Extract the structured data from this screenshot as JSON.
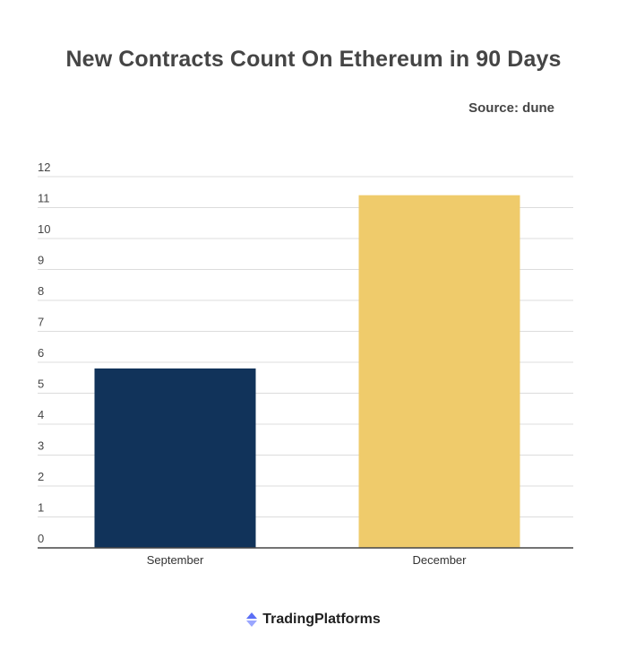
{
  "chart_data": {
    "type": "bar",
    "title": "New Contracts Count On Ethereum in 90 Days",
    "source": "Source: dune",
    "categories": [
      "September",
      "December"
    ],
    "values": [
      5.8,
      11.4
    ],
    "colors": [
      "#11335a",
      "#efcb6b"
    ],
    "ylim": [
      0,
      12
    ],
    "yticks": [
      "0",
      "1",
      "2",
      "3",
      "4",
      "5",
      "6",
      "7",
      "8",
      "9",
      "10",
      "11",
      "12"
    ],
    "grid": true,
    "xlabel": "",
    "ylabel": ""
  },
  "brand": {
    "name": "TradingPlatforms",
    "icon": "tradingplatforms-logo-icon"
  }
}
